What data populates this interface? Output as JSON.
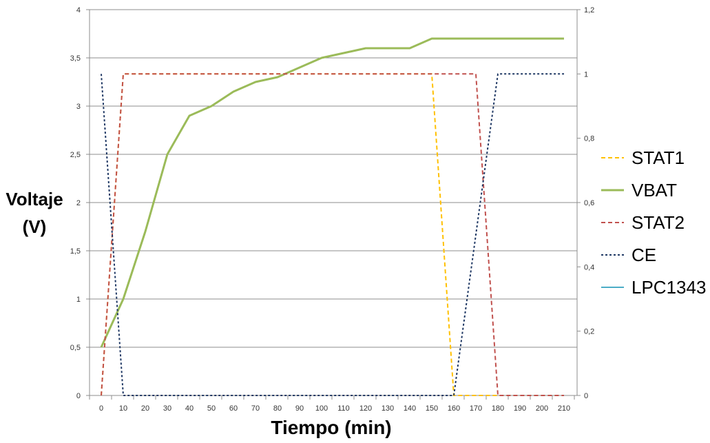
{
  "chart_data": {
    "type": "line",
    "title": "",
    "xlabel": "Tiempo (min)",
    "ylabel_lines": [
      "Voltaje",
      "(V)"
    ],
    "ylabel_right": "",
    "x_ticks": [
      0,
      10,
      20,
      30,
      40,
      50,
      60,
      70,
      80,
      90,
      100,
      110,
      120,
      130,
      140,
      150,
      160,
      170,
      180,
      190,
      200,
      210
    ],
    "y_left_ticks": [
      "0",
      "0,5",
      "1",
      "1,5",
      "2",
      "2,5",
      "3",
      "3,5",
      "4"
    ],
    "y_left_values": [
      0,
      0.5,
      1,
      1.5,
      2,
      2.5,
      3,
      3.5,
      4
    ],
    "y_right_ticks": [
      "0",
      "0,2",
      "0,4",
      "0,6",
      "0,8",
      "1",
      "1,2"
    ],
    "y_right_values": [
      0,
      0.2,
      0.4,
      0.6,
      0.8,
      1,
      1.2
    ],
    "ylim_left": [
      0,
      4
    ],
    "ylim_right": [
      0,
      1.2
    ],
    "xlim": [
      0,
      210
    ],
    "grid": "horizontal",
    "legend_position": "right",
    "series": [
      {
        "name": "STAT1",
        "axis": "right",
        "color": "#FFC000",
        "dash": "dashed",
        "x": [
          0,
          10,
          150,
          160,
          210
        ],
        "y": [
          0,
          1,
          1,
          0,
          0
        ]
      },
      {
        "name": "VBAT",
        "axis": "left",
        "color": "#9BBB59",
        "dash": "solid",
        "x": [
          0,
          10,
          20,
          30,
          40,
          50,
          60,
          70,
          80,
          90,
          100,
          110,
          120,
          130,
          140,
          150,
          160,
          170,
          180,
          190,
          200,
          210
        ],
        "y": [
          0.5,
          1.0,
          1.7,
          2.5,
          2.9,
          3.0,
          3.15,
          3.25,
          3.3,
          3.4,
          3.5,
          3.55,
          3.6,
          3.6,
          3.6,
          3.7,
          3.7,
          3.7,
          3.7,
          3.7,
          3.7,
          3.7
        ]
      },
      {
        "name": "STAT2",
        "axis": "right",
        "color": "#C0504D",
        "dash": "dashed",
        "x": [
          0,
          10,
          160,
          170,
          180,
          210
        ],
        "y": [
          0,
          1,
          1,
          1,
          0,
          0
        ]
      },
      {
        "name": "CE",
        "axis": "right",
        "color": "#1F3864",
        "dash": "dotted",
        "x": [
          0,
          10,
          160,
          170,
          180,
          210
        ],
        "y": [
          1,
          0,
          0,
          0.5,
          1,
          1
        ]
      },
      {
        "name": "LPC1343",
        "axis": "right",
        "color": "#4BACC6",
        "dash": "solid",
        "x": [],
        "y": []
      }
    ]
  }
}
